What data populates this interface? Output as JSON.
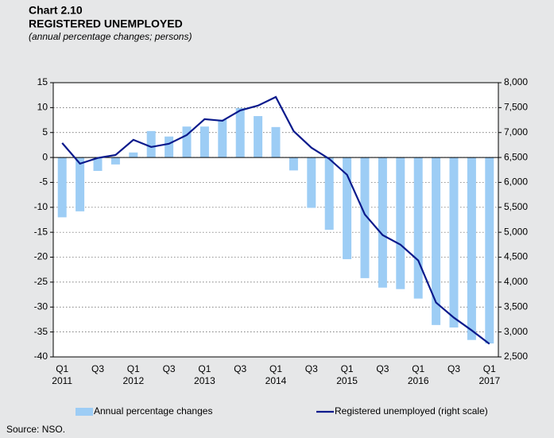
{
  "chart_data": {
    "type": "bar-line",
    "label": "Chart 2.10",
    "title": "REGISTERED UNEMPLOYED",
    "subtitle": "(annual percentage changes; persons)",
    "source": "Source: NSO.",
    "categories": [
      "Q1",
      null,
      "Q3",
      null,
      "Q1",
      null,
      "Q3",
      null,
      "Q1",
      null,
      "Q3",
      null,
      "Q1",
      null,
      "Q3",
      null,
      "Q1",
      null,
      "Q3",
      null,
      "Q1",
      null,
      "Q3",
      null,
      "Q1"
    ],
    "years": [
      "2011",
      null,
      null,
      null,
      "2012",
      null,
      null,
      null,
      "2013",
      null,
      null,
      null,
      "2014",
      null,
      null,
      null,
      "2015",
      null,
      null,
      null,
      "2016",
      null,
      null,
      null,
      "2017"
    ],
    "series": [
      {
        "name": "Annual percentage changes",
        "type": "bar",
        "color": "#9dcdf5",
        "values": [
          -12,
          -10.8,
          -2.7,
          -1.4,
          1,
          5.3,
          4.2,
          6.2,
          6.2,
          7.6,
          9.9,
          8.3,
          6.1,
          -2.6,
          -10.1,
          -14.5,
          -20.4,
          -24.2,
          -26.1,
          -26.4,
          -28.3,
          -33.6,
          -34.1,
          -36.6,
          -37.3
        ]
      },
      {
        "name": "Registered unemployed (right scale)",
        "type": "line",
        "axis": "y2",
        "color": "#0a1a8c",
        "values": [
          6790,
          6376,
          6490,
          6550,
          6854,
          6710,
          6775,
          6950,
          7268,
          7236,
          7443,
          7540,
          7713,
          7029,
          6695,
          6472,
          6153,
          5357,
          4943,
          4752,
          4434,
          3590,
          3288,
          3033,
          2762
        ]
      }
    ],
    "ylim": [
      -40,
      15
    ],
    "yticks": [
      -40,
      -35,
      -30,
      -25,
      -20,
      -15,
      -10,
      -5,
      0,
      5,
      10,
      15
    ],
    "y2lim": [
      2500,
      8000
    ],
    "y2ticks": [
      {
        "value": 2500,
        "label": "2,500"
      },
      {
        "value": 3000,
        "label": "3,000"
      },
      {
        "value": 3500,
        "label": "3,500"
      },
      {
        "value": 4000,
        "label": "4,000"
      },
      {
        "value": 4500,
        "label": "4,500"
      },
      {
        "value": 5000,
        "label": "5,000"
      },
      {
        "value": 5500,
        "label": "5,500"
      },
      {
        "value": 6000,
        "label": "6,000"
      },
      {
        "value": 6500,
        "label": "6,500"
      },
      {
        "value": 7000,
        "label": "7,000"
      },
      {
        "value": 7500,
        "label": "7,500"
      },
      {
        "value": 8000,
        "label": "8,000"
      }
    ],
    "grid": true,
    "legend": "bottom"
  }
}
